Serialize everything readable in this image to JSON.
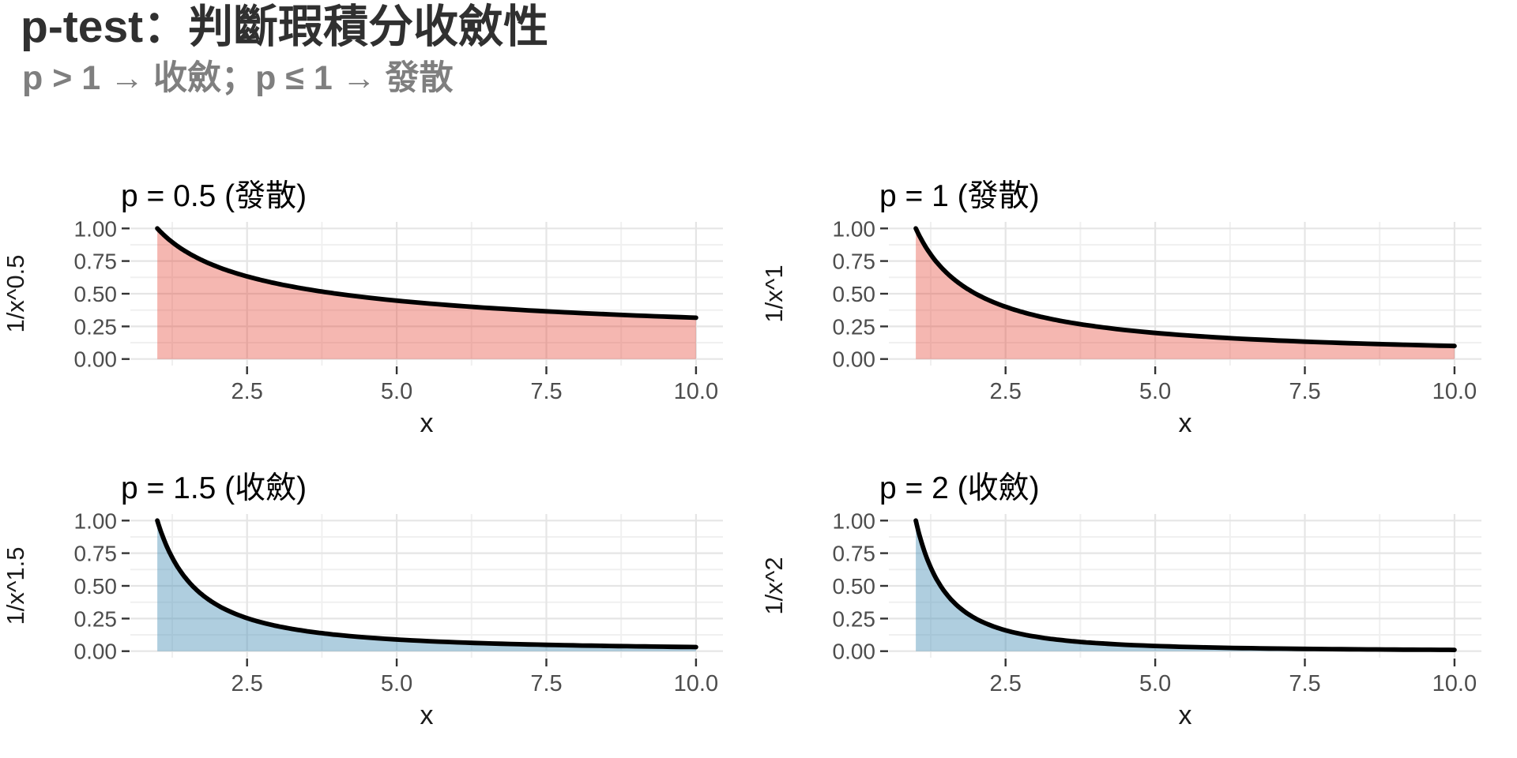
{
  "page": {
    "title": "p-test：判斷瑕積分收斂性",
    "subtitle": "p > 1 → 收斂；p ≤ 1 → 發散",
    "background": "#FFFFFF"
  },
  "style": {
    "title_color": "#303030",
    "subtitle_color": "#7F7F7F",
    "panel_title_color": "#000000",
    "axis_text_color": "#4D4D4D",
    "axis_title_color": "#1A1A1A",
    "tick_mark_color": "#333333",
    "grid_major_color": "#E5E5E5",
    "grid_minor_color": "#F0F0F0",
    "curve_color": "#000000",
    "divergent_fill": "#E74C3C",
    "divergent_fill_opacity": 0.4,
    "convergent_fill": "#4D93B7",
    "convergent_fill_opacity": 0.45
  },
  "chart_data": [
    {
      "id": "p-0.5",
      "type": "area",
      "p": 0.5,
      "title": "p = 0.5 (發散)",
      "verdict": "發散",
      "converges": false,
      "function": "y = 1/x^0.5",
      "xlabel": "x",
      "ylabel": "1/x^0.5",
      "xlim": [
        1,
        10
      ],
      "ylim": [
        0,
        1
      ],
      "x_ticks": [
        2.5,
        5,
        7.5,
        10
      ],
      "x_tick_labels": [
        "2.5",
        "5.0",
        "7.5",
        "10.0"
      ],
      "y_ticks": [
        0,
        0.25,
        0.5,
        0.75,
        1
      ],
      "y_tick_labels": [
        "0.00",
        "0.25",
        "0.50",
        "0.75",
        "1.00"
      ],
      "x": [
        1,
        2,
        3,
        4,
        5,
        6,
        7,
        8,
        9,
        10
      ],
      "y": [
        1,
        0.707,
        0.577,
        0.5,
        0.447,
        0.408,
        0.378,
        0.354,
        0.333,
        0.316
      ],
      "fill_role": "divergent",
      "grid": true,
      "legend": "none"
    },
    {
      "id": "p-1",
      "type": "area",
      "p": 1,
      "title": "p = 1 (發散)",
      "verdict": "發散",
      "converges": false,
      "function": "y = 1/x^1",
      "xlabel": "x",
      "ylabel": "1/x^1",
      "xlim": [
        1,
        10
      ],
      "ylim": [
        0,
        1
      ],
      "x_ticks": [
        2.5,
        5,
        7.5,
        10
      ],
      "x_tick_labels": [
        "2.5",
        "5.0",
        "7.5",
        "10.0"
      ],
      "y_ticks": [
        0,
        0.25,
        0.5,
        0.75,
        1
      ],
      "y_tick_labels": [
        "0.00",
        "0.25",
        "0.50",
        "0.75",
        "1.00"
      ],
      "x": [
        1,
        2,
        3,
        4,
        5,
        6,
        7,
        8,
        9,
        10
      ],
      "y": [
        1,
        0.5,
        0.333,
        0.25,
        0.2,
        0.167,
        0.143,
        0.125,
        0.111,
        0.1
      ],
      "fill_role": "divergent",
      "grid": true,
      "legend": "none"
    },
    {
      "id": "p-1.5",
      "type": "area",
      "p": 1.5,
      "title": "p = 1.5 (收斂)",
      "verdict": "收斂",
      "converges": true,
      "function": "y = 1/x^1.5",
      "xlabel": "x",
      "ylabel": "1/x^1.5",
      "xlim": [
        1,
        10
      ],
      "ylim": [
        0,
        1
      ],
      "x_ticks": [
        2.5,
        5,
        7.5,
        10
      ],
      "x_tick_labels": [
        "2.5",
        "5.0",
        "7.5",
        "10.0"
      ],
      "y_ticks": [
        0,
        0.25,
        0.5,
        0.75,
        1
      ],
      "y_tick_labels": [
        "0.00",
        "0.25",
        "0.50",
        "0.75",
        "1.00"
      ],
      "x": [
        1,
        2,
        3,
        4,
        5,
        6,
        7,
        8,
        9,
        10
      ],
      "y": [
        1,
        0.354,
        0.192,
        0.125,
        0.089,
        0.068,
        0.054,
        0.044,
        0.037,
        0.032
      ],
      "fill_role": "convergent",
      "grid": true,
      "legend": "none"
    },
    {
      "id": "p-2",
      "type": "area",
      "p": 2,
      "title": "p = 2 (收斂)",
      "verdict": "收斂",
      "converges": true,
      "function": "y = 1/x^2",
      "xlabel": "x",
      "ylabel": "1/x^2",
      "xlim": [
        1,
        10
      ],
      "ylim": [
        0,
        1
      ],
      "x_ticks": [
        2.5,
        5,
        7.5,
        10
      ],
      "x_tick_labels": [
        "2.5",
        "5.0",
        "7.5",
        "10.0"
      ],
      "y_ticks": [
        0,
        0.25,
        0.5,
        0.75,
        1
      ],
      "y_tick_labels": [
        "0.00",
        "0.25",
        "0.50",
        "0.75",
        "1.00"
      ],
      "x": [
        1,
        2,
        3,
        4,
        5,
        6,
        7,
        8,
        9,
        10
      ],
      "y": [
        1,
        0.25,
        0.111,
        0.063,
        0.04,
        0.028,
        0.02,
        0.016,
        0.012,
        0.01
      ],
      "fill_role": "convergent",
      "grid": true,
      "legend": "none"
    }
  ]
}
